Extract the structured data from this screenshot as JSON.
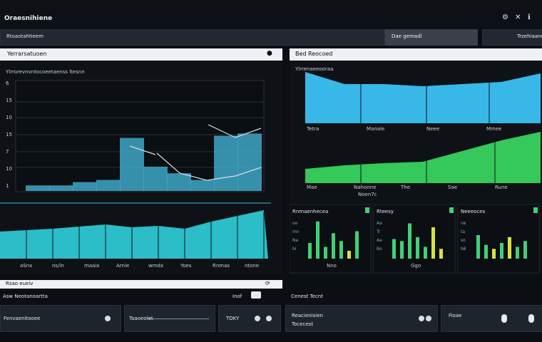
{
  "app": {
    "title": "Oraesnihiene",
    "window_icons": [
      "gear-icon",
      "tools-icon"
    ]
  },
  "topbar": {
    "left_field": "Rtoaotahtieem",
    "middle_button": "Dae gemadl",
    "right_button": "Trzehiaanon"
  },
  "left_panel": {
    "header": "Yerrarsatuoen",
    "chart_title": "Ylrrorevnvntocoeetaenss ltesnn",
    "side_labels": [
      "6",
      "15",
      "10",
      "15",
      "7",
      "10",
      "1"
    ],
    "x_labels": [
      "aSnx",
      "ns/in",
      "maaix",
      "Arnie",
      "wmdx",
      "Yoes",
      "Rnmas",
      "ntone"
    ],
    "bar_values": [
      5,
      5,
      8,
      10,
      48,
      22,
      16,
      10,
      50,
      52
    ],
    "band_values": [
      38,
      40,
      42,
      45,
      48,
      44,
      46,
      42,
      52,
      60,
      68
    ],
    "colors": {
      "bar": "#3fa7c7",
      "band": "#2fd0dc",
      "line": "#d6dde6"
    }
  },
  "right_panel": {
    "header": "Bed Reocoed",
    "top_chart_title": "Ylrrenaeeooraa",
    "top_chart_values": [
      72,
      55,
      55,
      52,
      55,
      58,
      70
    ],
    "top_x_labels": [
      "Tetra",
      "Manale",
      "Neee",
      "Mmee"
    ],
    "mid_chart_values": [
      20,
      25,
      28,
      30,
      45,
      60,
      72
    ],
    "mid_x_labels": [
      "Mae",
      "Nahonne",
      "The",
      "Sae",
      "Rune"
    ],
    "mid_x_extra": "Noen7c",
    "sub_panels": [
      {
        "title": "Rnmaenhecea",
        "side_labels": [
          "oo",
          "mn",
          "Na",
          "bi"
        ],
        "x_label": "Nno",
        "bars": [
          40,
          95,
          30,
          65,
          45,
          20,
          70
        ],
        "highlight": [
          false,
          false,
          false,
          false,
          false,
          true,
          false
        ]
      },
      {
        "title": "Rteesy",
        "side_labels": [
          "Aa",
          "Tr",
          "Aa",
          "Bo"
        ],
        "x_label": "Ggo",
        "bars": [
          50,
          45,
          90,
          55,
          30,
          80,
          25
        ],
        "highlight": [
          false,
          false,
          false,
          false,
          false,
          true,
          true
        ]
      },
      {
        "title": "Neeeoces",
        "side_labels": [
          "ne",
          "ta",
          "so",
          "b8"
        ],
        "x_label": "",
        "bars": [
          60,
          35,
          25,
          40,
          55,
          30,
          45
        ],
        "highlight": [
          false,
          false,
          true,
          false,
          true,
          false,
          false
        ]
      }
    ],
    "colors": {
      "top_area": "#38b8e8",
      "mid_area": "#35c85a",
      "sub_bar": "#3fd078",
      "highlight": "#d8e040"
    }
  },
  "bottom": {
    "left_header": "Rsao eueiv",
    "left_sub": "Asw Neotanoartta",
    "left_sub_right": "Inof",
    "right_header": "Cenest Tecnt",
    "controls": [
      {
        "label": "Fenvaenitooee"
      },
      {
        "label": "Taaoeolet"
      },
      {
        "label": "TOKY"
      },
      {
        "label": "Reacienisien",
        "sub": "Tocecest"
      },
      {
        "label": "Fioae"
      }
    ]
  }
}
